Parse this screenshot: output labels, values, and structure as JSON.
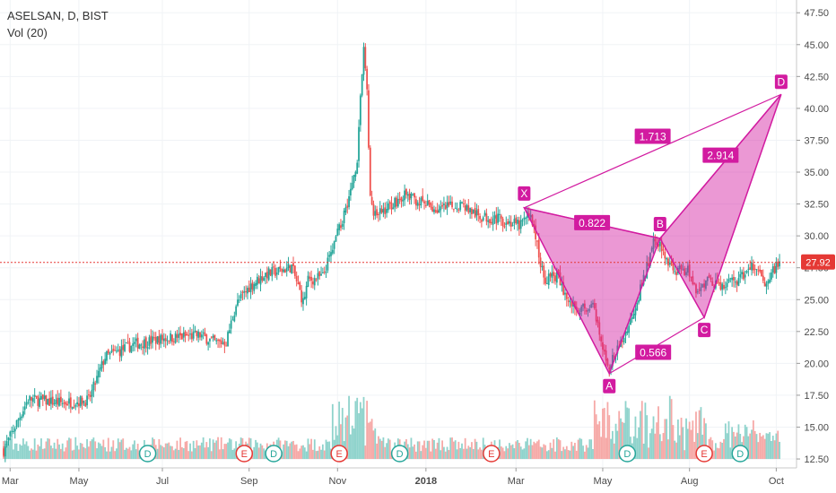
{
  "header": {
    "symbol": "ASELSAN, D, BIST",
    "volume_label": "Vol (20)"
  },
  "colors": {
    "up": "#26a69a",
    "down": "#ef5350",
    "up_vol": "#8fd3cc",
    "down_vol": "#f6a9a7",
    "pattern": "#d21ba0",
    "price_line": "#e53935",
    "event_e": "#e53935",
    "event_d": "#26a69a"
  },
  "chart_data": {
    "type": "candlestick",
    "title": "ASELSAN, D, BIST",
    "y_axis": {
      "ticks": [
        "47.50",
        "45.00",
        "42.50",
        "40.00",
        "37.50",
        "35.00",
        "32.50",
        "30.00",
        "27.50",
        "25.00",
        "22.50",
        "20.00",
        "17.50",
        "15.00",
        "12.50"
      ],
      "range": [
        11.8,
        48.5
      ]
    },
    "x_axis": {
      "ticks": [
        "Mar",
        "May",
        "Jul",
        "Sep",
        "Nov",
        "2018",
        "Mar",
        "May",
        "Aug",
        "Oct"
      ]
    },
    "last_price": "27.92",
    "price_anchors": [
      [
        0,
        13.2
      ],
      [
        15,
        17.2
      ],
      [
        35,
        16.9
      ],
      [
        52,
        17.1
      ],
      [
        62,
        20.5
      ],
      [
        80,
        21.5
      ],
      [
        100,
        22.0
      ],
      [
        120,
        22.2
      ],
      [
        130,
        21.6
      ],
      [
        136,
        21.7
      ],
      [
        142,
        24.6
      ],
      [
        150,
        26.0
      ],
      [
        160,
        27.0
      ],
      [
        170,
        27.3
      ],
      [
        176,
        27.6
      ],
      [
        180,
        26.0
      ],
      [
        183,
        24.8
      ],
      [
        186,
        26.5
      ],
      [
        195,
        26.8
      ],
      [
        205,
        30.5
      ],
      [
        212,
        33.5
      ],
      [
        216,
        36.0
      ],
      [
        218,
        41.0
      ],
      [
        220,
        44.5
      ],
      [
        222,
        41.5
      ],
      [
        224,
        33.0
      ],
      [
        226,
        31.5
      ],
      [
        232,
        32.0
      ],
      [
        245,
        33.2
      ],
      [
        255,
        32.6
      ],
      [
        265,
        32.0
      ],
      [
        280,
        32.5
      ],
      [
        290,
        31.5
      ],
      [
        300,
        31.4
      ],
      [
        315,
        30.8
      ],
      [
        322,
        31.8
      ],
      [
        330,
        26.6
      ],
      [
        338,
        26.9
      ],
      [
        345,
        24.8
      ],
      [
        352,
        24.2
      ],
      [
        360,
        24.5
      ],
      [
        366,
        21.0
      ],
      [
        370,
        19.8
      ],
      [
        375,
        21.0
      ],
      [
        382,
        23.0
      ],
      [
        392,
        27.0
      ],
      [
        398,
        30.0
      ],
      [
        404,
        28.3
      ],
      [
        412,
        27.2
      ],
      [
        418,
        27.4
      ],
      [
        424,
        25.6
      ],
      [
        430,
        26.5
      ],
      [
        440,
        26.0
      ],
      [
        450,
        26.6
      ],
      [
        457,
        27.6
      ],
      [
        465,
        26.4
      ],
      [
        474,
        27.9
      ]
    ],
    "volume_range": [
      0,
      21
    ],
    "volume_baseline_price": 12.5,
    "pattern": {
      "type": "harmonic",
      "points": [
        {
          "label": "X",
          "x": 318,
          "price": 32.2
        },
        {
          "label": "A",
          "x": 370,
          "price": 19.2
        },
        {
          "label": "B",
          "x": 401,
          "price": 29.8
        },
        {
          "label": "C",
          "x": 428,
          "price": 23.6
        },
        {
          "label": "D",
          "x": 475,
          "price": 41.1
        }
      ],
      "ratios": [
        "1.713",
        "0.822",
        "2.914",
        "0.566"
      ]
    },
    "event_markers": [
      {
        "label": "D",
        "x": 88
      },
      {
        "label": "E",
        "x": 147
      },
      {
        "label": "D",
        "x": 165
      },
      {
        "label": "E",
        "x": 205
      },
      {
        "label": "D",
        "x": 242
      },
      {
        "label": "E",
        "x": 298
      },
      {
        "label": "D",
        "x": 381
      },
      {
        "label": "E",
        "x": 428
      },
      {
        "label": "D",
        "x": 450
      }
    ]
  }
}
